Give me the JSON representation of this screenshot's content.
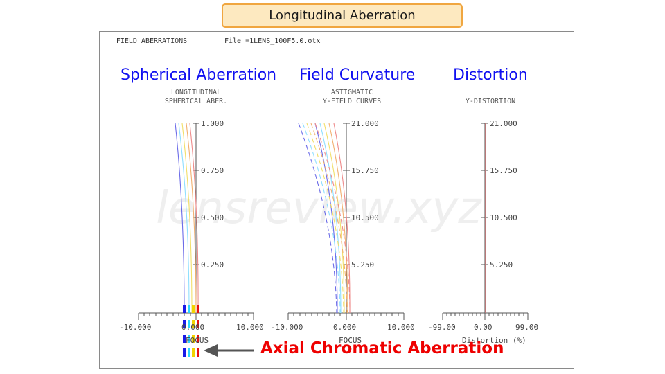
{
  "title": "Longitudinal Aberration",
  "header": {
    "left": "FIELD ABERRATIONS",
    "file": "File =1LENS_100F5.0.otx"
  },
  "watermark": "lensreview.xyz",
  "annotation": "Axial Chromatic Aberration",
  "colors": {
    "blue_title": "#1010f0",
    "red_note": "#ee0000",
    "title_fill": "#fde9c0",
    "title_border": "#f0a640"
  },
  "plots": [
    {
      "heading": "Spherical Aberration",
      "subtitle": [
        "LONGITUDINAL",
        "SPHERICAl ABER."
      ],
      "y_ticks": [
        "1.000",
        "0.750",
        "0.500",
        "0.250"
      ],
      "x_ticks": [
        "-10.000",
        "0.000",
        "10.000"
      ],
      "x_axis_label": "FOCUS"
    },
    {
      "heading": "Field Curvature",
      "subtitle": [
        "ASTIGMATIC",
        "Y-FIELD CURVES"
      ],
      "y_ticks": [
        "21.000",
        "15.750",
        "10.500",
        "5.250"
      ],
      "x_ticks": [
        "-10.000",
        "0.000",
        "10.000"
      ],
      "x_axis_label": "FOCUS"
    },
    {
      "heading": "Distortion",
      "subtitle": [
        "Y-DISTORTION"
      ],
      "y_ticks": [
        "21.000",
        "15.750",
        "10.500",
        "5.250"
      ],
      "x_ticks": [
        "-99.00",
        "0.00",
        "99.00"
      ],
      "x_axis_label": "Distortion (%)"
    }
  ]
}
